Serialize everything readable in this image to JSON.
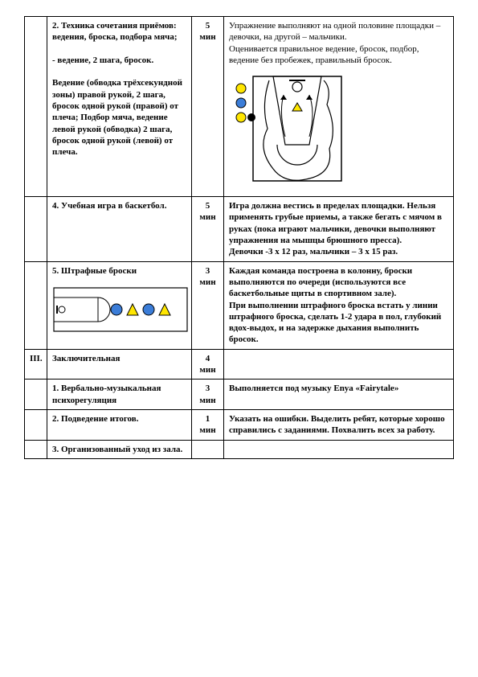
{
  "rows": [
    {
      "num": "",
      "task_html": "2. Техника сочетания приёмов: ведения, броска, подбора мяча;\n\n- ведение, 2 шага, бросок.\n\nВедение (обводка трёхсекундной зоны) правой рукой, 2 шага, бросок одной рукой (правой) от плеча; Подбор мяча, ведение левой рукой (обводка) 2 шага, бросок одной рукой (левой) от плеча.",
      "time": "5\nмин",
      "note": "Упражнение выполняют на одной половине площадки – девочки, на другой – мальчики.\nОценивается правильное ведение, бросок, подбор, ведение без пробежек, правильный бросок.",
      "diagram": "court"
    },
    {
      "num": "",
      "task_html": "4. Учебная игра в баскетбол.",
      "time": "5\nмин",
      "note": "Игра должна вестись в пределах площадки. Нельзя применять грубые приемы, а также бегать с мячом в руках (пока играют мальчики, девочки выполняют упражнения на мышцы брюшного пресса).\nДевочки -3 х 12 раз, мальчики – 3 х 15 раз."
    },
    {
      "num": "",
      "task_html": "5. Штрафные броски",
      "time": "3 мин",
      "note": "Каждая команда построена в колонну, броски выполняются по очереди (используются все баскетбольные щиты в  спортивном зале).\nПри выполнении штрафного броска встать у линии штрафного броска, сделать 1-2 удара в пол, глубокий вдох-выдох, и на задержке дыхания выполнить бросок.",
      "diagram": "freethrow"
    },
    {
      "num": "III.",
      "task_html": "Заключительная",
      "time": "4 мин",
      "note": "",
      "section": true
    },
    {
      "num": "",
      "task_html": "1. Вербально-музыкальная психорегуляция",
      "time": "3 мин",
      "note": "Выполняется под музыку Enya «Fairytale»"
    },
    {
      "num": "",
      "task_html": "2. Подведение итогов.",
      "time": "1 мин",
      "note": "Указать на ошибки. Выделить ребят, которые хорошо справились с заданиями. Похвалить всех за работу."
    },
    {
      "num": "",
      "task_html": "3. Организованный уход из зала.",
      "time": "",
      "note": ""
    }
  ],
  "diagrams": {
    "court": {
      "bg": "#ffffff",
      "ball_colors": [
        "#ffe600",
        "#3b7dd8",
        "#ffe600",
        "#000000"
      ],
      "triangle": "#ffe600"
    },
    "freethrow": {
      "bg": "#ffffff",
      "circle1": "#3b7dd8",
      "tri1": "#ffe600",
      "circle2": "#3b7dd8",
      "tri2": "#ffe600"
    }
  }
}
